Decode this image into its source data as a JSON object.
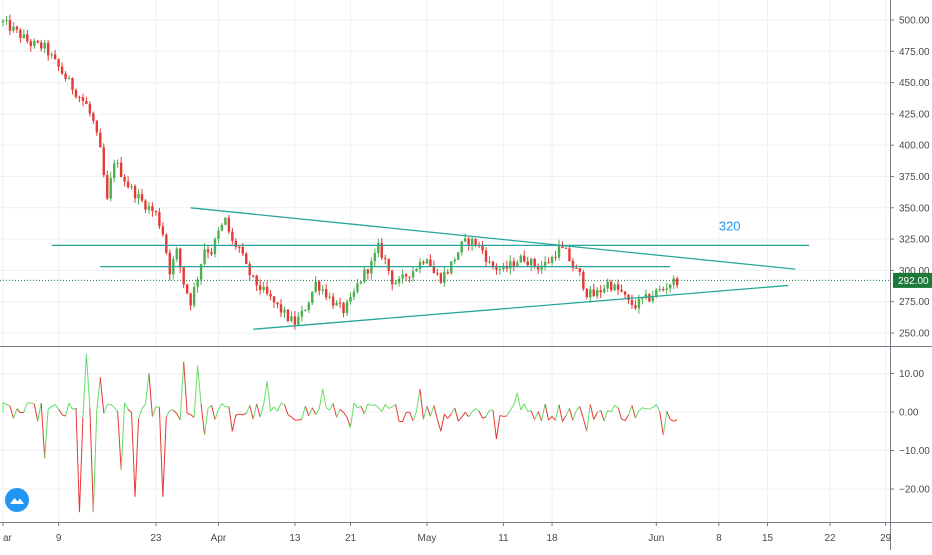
{
  "chart_data": [
    {
      "type": "candlestick",
      "panel": "price",
      "ylim": [
        240,
        510
      ],
      "y_ticks": [
        250,
        275,
        300,
        325,
        350,
        375,
        400,
        425,
        450,
        475,
        500
      ],
      "y_tick_labels": [
        "250.00",
        "275.00",
        "300.00",
        "325.00",
        "350.00",
        "375.00",
        "400.00",
        "425.00",
        "450.00",
        "475.00",
        "500.00"
      ],
      "grid": true,
      "last_price": 292.0,
      "last_price_label": "292.00",
      "colors": {
        "up": "#4caf50",
        "down": "#e53935",
        "trendline": "#26a69a",
        "price_line": "#1b7a3a",
        "annotation": "#2196f3"
      },
      "price_path_day_close": [
        [
          0,
          498
        ],
        [
          2,
          490
        ],
        [
          4,
          481
        ],
        [
          6,
          478
        ],
        [
          8,
          462
        ],
        [
          10,
          446
        ],
        [
          12,
          432
        ],
        [
          13,
          418
        ],
        [
          14,
          395
        ],
        [
          15,
          355
        ],
        [
          16,
          388
        ],
        [
          18,
          368
        ],
        [
          20,
          355
        ],
        [
          22,
          345
        ],
        [
          23,
          330
        ],
        [
          24,
          300
        ],
        [
          25,
          315
        ],
        [
          26,
          290
        ],
        [
          27,
          275
        ],
        [
          28,
          295
        ],
        [
          29,
          318
        ],
        [
          30,
          315
        ],
        [
          31,
          330
        ],
        [
          32,
          340
        ],
        [
          33,
          322
        ],
        [
          34,
          318
        ],
        [
          35,
          302
        ],
        [
          36,
          292
        ],
        [
          37,
          286
        ],
        [
          38,
          280
        ],
        [
          39,
          274
        ],
        [
          40,
          268
        ],
        [
          41,
          262
        ],
        [
          42,
          258
        ],
        [
          43,
          265
        ],
        [
          44,
          276
        ],
        [
          45,
          290
        ],
        [
          46,
          285
        ],
        [
          47,
          278
        ],
        [
          48,
          272
        ],
        [
          49,
          268
        ],
        [
          50,
          275
        ],
        [
          51,
          288
        ],
        [
          52,
          298
        ],
        [
          53,
          305
        ],
        [
          54,
          318
        ],
        [
          55,
          308
        ],
        [
          56,
          292
        ],
        [
          57,
          290
        ],
        [
          58,
          296
        ],
        [
          59,
          300
        ],
        [
          60,
          306
        ],
        [
          61,
          312
        ],
        [
          62,
          298
        ],
        [
          63,
          294
        ],
        [
          64,
          300
        ],
        [
          65,
          310
        ],
        [
          66,
          320
        ],
        [
          67,
          324
        ],
        [
          68,
          322
        ],
        [
          69,
          316
        ],
        [
          70,
          305
        ],
        [
          71,
          302
        ],
        [
          72,
          300
        ],
        [
          73,
          304
        ],
        [
          74,
          308
        ],
        [
          75,
          310
        ],
        [
          76,
          306
        ],
        [
          77,
          303
        ],
        [
          78,
          305
        ],
        [
          79,
          310
        ],
        [
          80,
          318
        ],
        [
          81,
          314
        ],
        [
          82,
          303
        ],
        [
          83,
          296
        ],
        [
          84,
          282
        ],
        [
          85,
          280
        ],
        [
          86,
          284
        ],
        [
          87,
          290
        ],
        [
          88,
          286
        ],
        [
          89,
          282
        ],
        [
          90,
          274
        ],
        [
          91,
          272
        ],
        [
          92,
          276
        ],
        [
          93,
          278
        ],
        [
          94,
          283
        ],
        [
          95,
          285
        ],
        [
          96,
          290
        ],
        [
          97,
          292
        ]
      ],
      "trendlines": [
        {
          "name": "descending-resistance",
          "points": [
            [
              27,
              350
            ],
            [
              114,
              301
            ]
          ]
        },
        {
          "name": "horizontal-320",
          "points": [
            [
              7,
              320
            ],
            [
              116,
              320
            ]
          ]
        },
        {
          "name": "horizontal-303",
          "points": [
            [
              14,
              303
            ],
            [
              96,
              303
            ]
          ]
        },
        {
          "name": "ascending-support",
          "points": [
            [
              36,
              253
            ],
            [
              113,
              288
            ]
          ]
        }
      ],
      "annotations": [
        {
          "text": "320",
          "x_day": 103,
          "y": 332
        }
      ]
    },
    {
      "type": "line",
      "panel": "oscillator",
      "ylim": [
        -30,
        15
      ],
      "y_ticks": [
        -20,
        -10,
        0,
        10
      ],
      "y_tick_labels": [
        "−20.00",
        "−10.00",
        "0.00",
        "10.00"
      ],
      "grid": true,
      "colors": {
        "positive": "#66dd66",
        "negative": "#e53935"
      },
      "spikes": [
        [
          6,
          -12
        ],
        [
          11,
          -26
        ],
        [
          12,
          15
        ],
        [
          13,
          -26
        ],
        [
          14,
          9
        ],
        [
          17,
          -15
        ],
        [
          19,
          -22
        ],
        [
          21,
          10
        ],
        [
          23,
          -22
        ],
        [
          26,
          13
        ],
        [
          28,
          12
        ],
        [
          29,
          -6
        ],
        [
          33,
          -5
        ],
        [
          38,
          8
        ],
        [
          46,
          6
        ],
        [
          50,
          -4
        ],
        [
          60,
          6
        ],
        [
          63,
          -5
        ],
        [
          71,
          -7
        ],
        [
          74,
          5
        ],
        [
          84,
          -5
        ],
        [
          95,
          -6
        ]
      ]
    }
  ],
  "x_axis": {
    "ticks": [
      {
        "day": 0,
        "label": "ar"
      },
      {
        "day": 8,
        "label": "9"
      },
      {
        "day": 22,
        "label": "23"
      },
      {
        "day": 31,
        "label": "Apr"
      },
      {
        "day": 42,
        "label": "13"
      },
      {
        "day": 50,
        "label": "21"
      },
      {
        "day": 61,
        "label": "May"
      },
      {
        "day": 72,
        "label": "11"
      },
      {
        "day": 79,
        "label": "18"
      },
      {
        "day": 94,
        "label": "Jun"
      },
      {
        "day": 103,
        "label": "8"
      },
      {
        "day": 110,
        "label": "15"
      },
      {
        "day": 119,
        "label": "22"
      },
      {
        "day": 127,
        "label": "29"
      }
    ]
  },
  "logo_icon": "tradingview-logo-icon"
}
